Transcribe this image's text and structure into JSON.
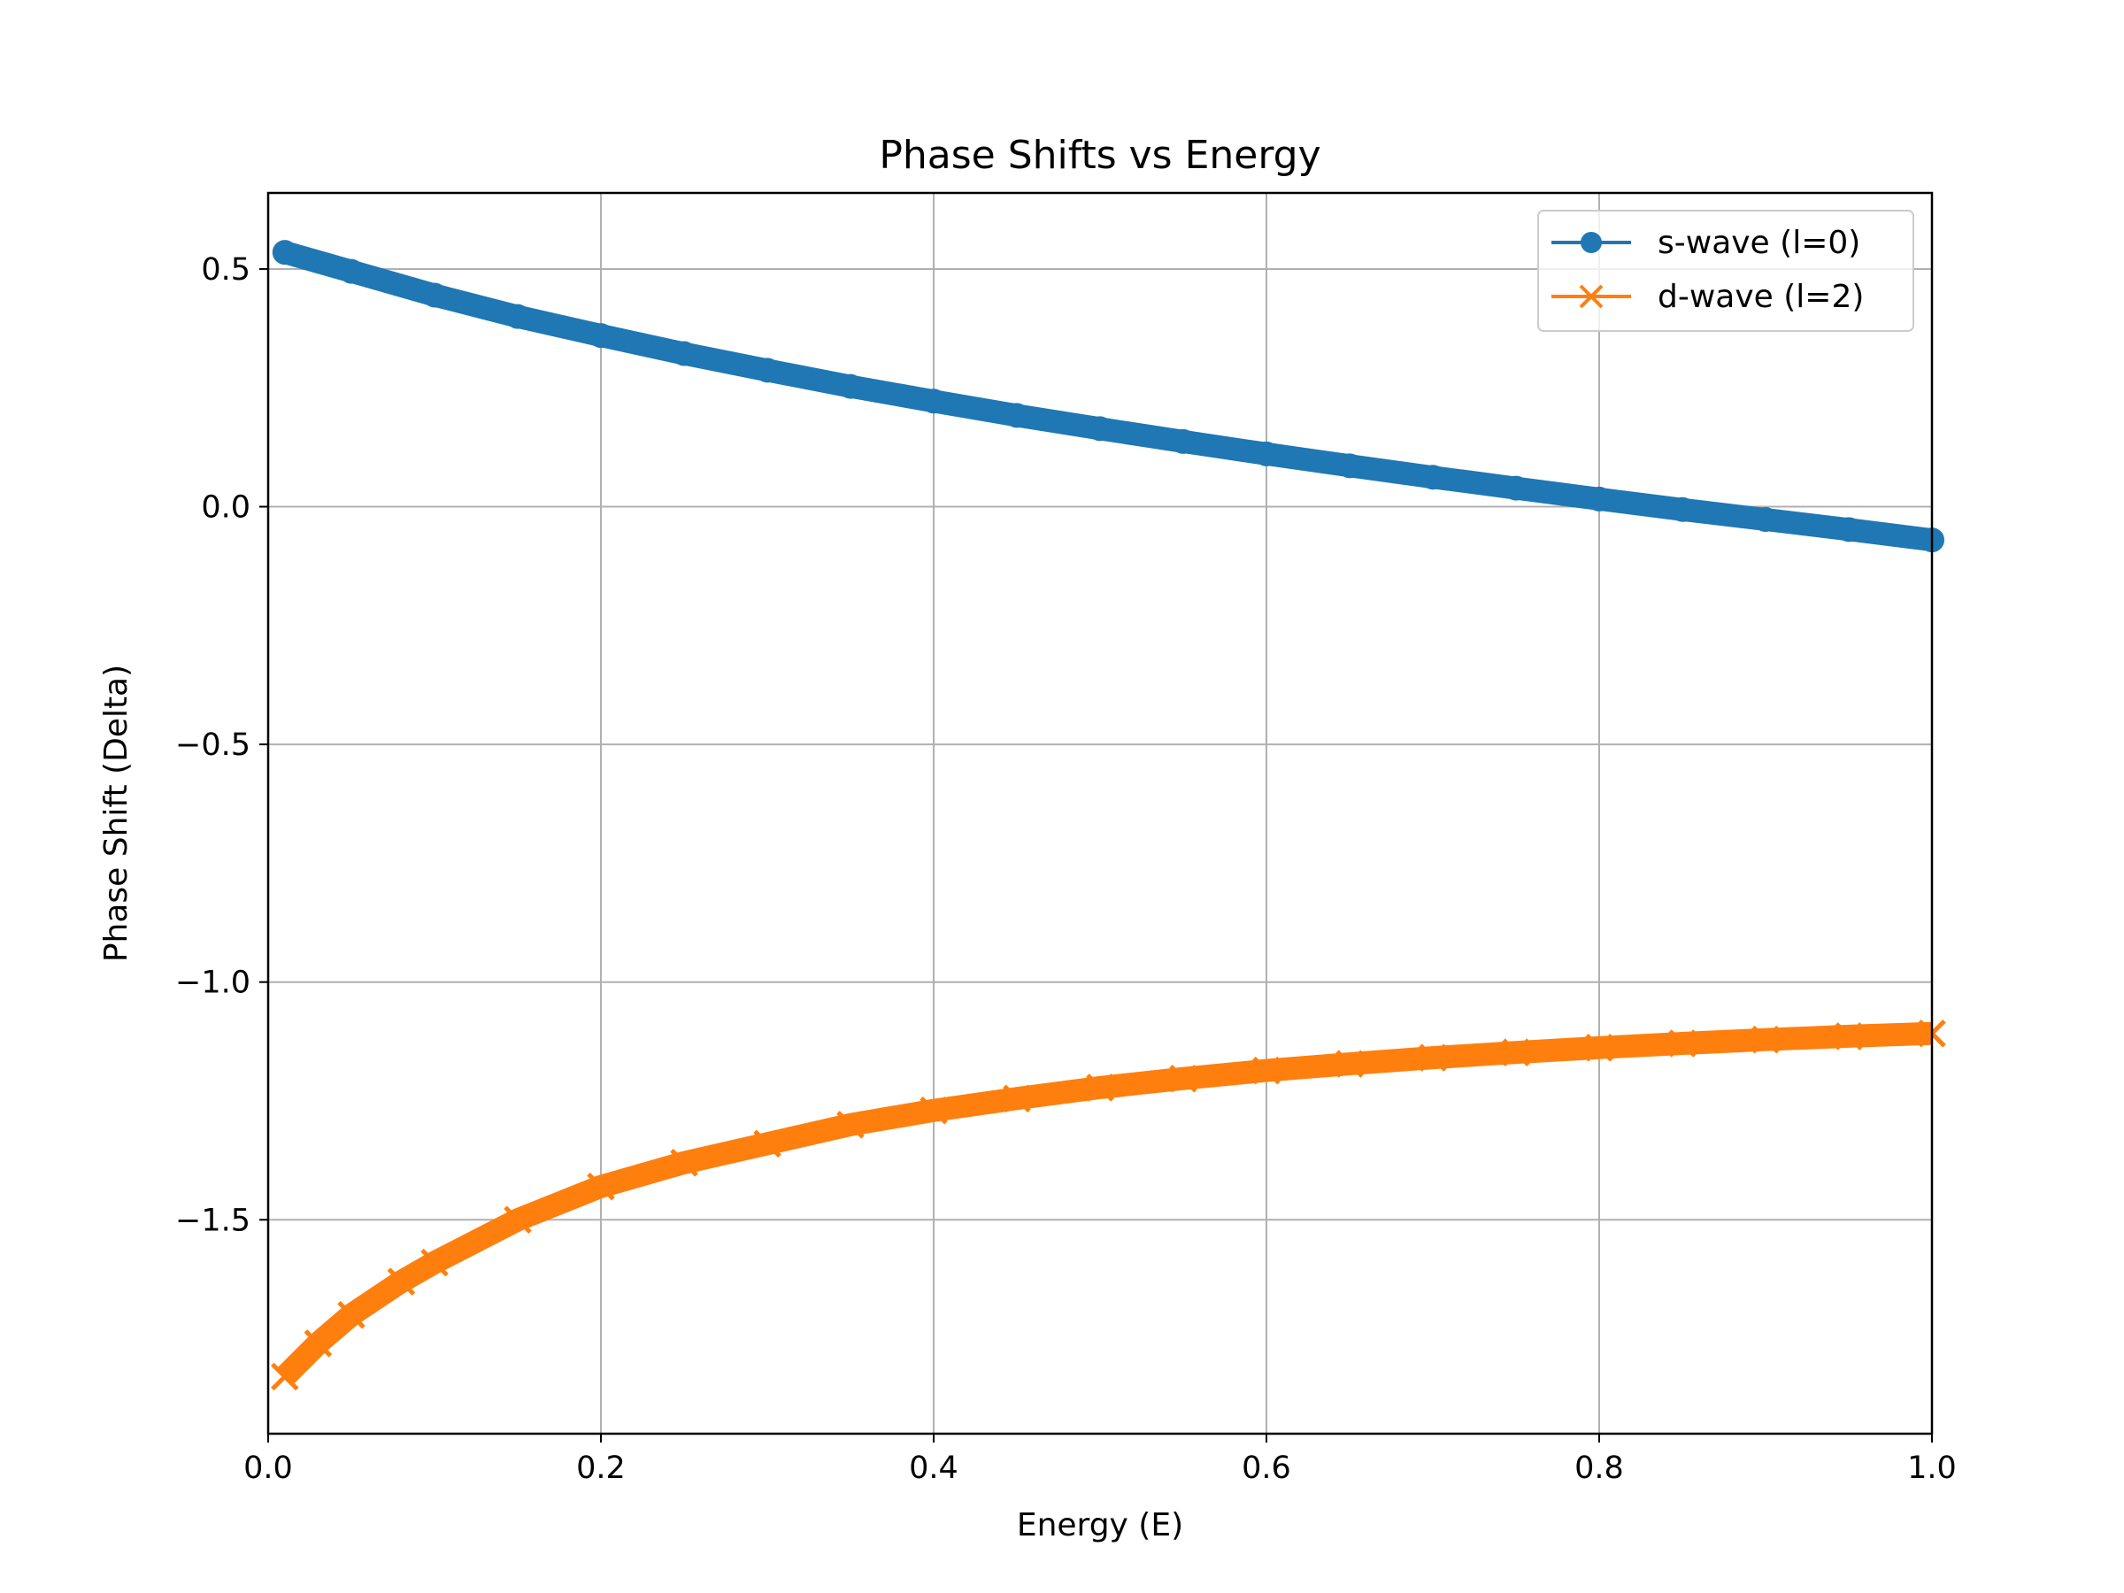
{
  "chart_data": {
    "type": "line",
    "title": "Phase Shifts vs Energy",
    "xlabel": "Energy (E)",
    "ylabel": "Phase Shift (Delta)",
    "xlim": [
      0.0,
      1.0
    ],
    "ylim": [
      -1.95,
      0.66
    ],
    "xticks": [
      0.0,
      0.2,
      0.4,
      0.6,
      0.8,
      1.0
    ],
    "xtick_labels": [
      "0.0",
      "0.2",
      "0.4",
      "0.6",
      "0.8",
      "1.0"
    ],
    "yticks": [
      0.5,
      0.0,
      -0.5,
      -1.0,
      -1.5
    ],
    "ytick_labels": [
      "0.5",
      "0.0",
      "−0.5",
      "−1.0",
      "−1.5"
    ],
    "grid": true,
    "legend_position": "top-right",
    "series": [
      {
        "name": "s-wave (l=0)",
        "marker": "circle",
        "color": "#1f77b4",
        "x": [
          0.01,
          0.05,
          0.1,
          0.15,
          0.2,
          0.25,
          0.3,
          0.35,
          0.4,
          0.45,
          0.5,
          0.55,
          0.6,
          0.65,
          0.7,
          0.75,
          0.8,
          0.85,
          0.9,
          0.95,
          1.0
        ],
        "y": [
          0.535,
          0.495,
          0.445,
          0.4,
          0.36,
          0.322,
          0.287,
          0.253,
          0.222,
          0.192,
          0.164,
          0.137,
          0.111,
          0.086,
          0.062,
          0.039,
          0.016,
          -0.006,
          -0.027,
          -0.048,
          -0.07
        ]
      },
      {
        "name": "d-wave (l=2)",
        "marker": "x",
        "color": "#ff7f0e",
        "x": [
          0.01,
          0.03,
          0.05,
          0.08,
          0.1,
          0.15,
          0.2,
          0.25,
          0.3,
          0.35,
          0.4,
          0.45,
          0.5,
          0.55,
          0.6,
          0.65,
          0.7,
          0.75,
          0.8,
          0.85,
          0.9,
          0.95,
          1.0
        ],
        "y": [
          -1.83,
          -1.76,
          -1.7,
          -1.63,
          -1.59,
          -1.5,
          -1.43,
          -1.38,
          -1.34,
          -1.3,
          -1.27,
          -1.245,
          -1.222,
          -1.203,
          -1.186,
          -1.172,
          -1.159,
          -1.148,
          -1.138,
          -1.129,
          -1.121,
          -1.114,
          -1.108
        ]
      }
    ]
  }
}
